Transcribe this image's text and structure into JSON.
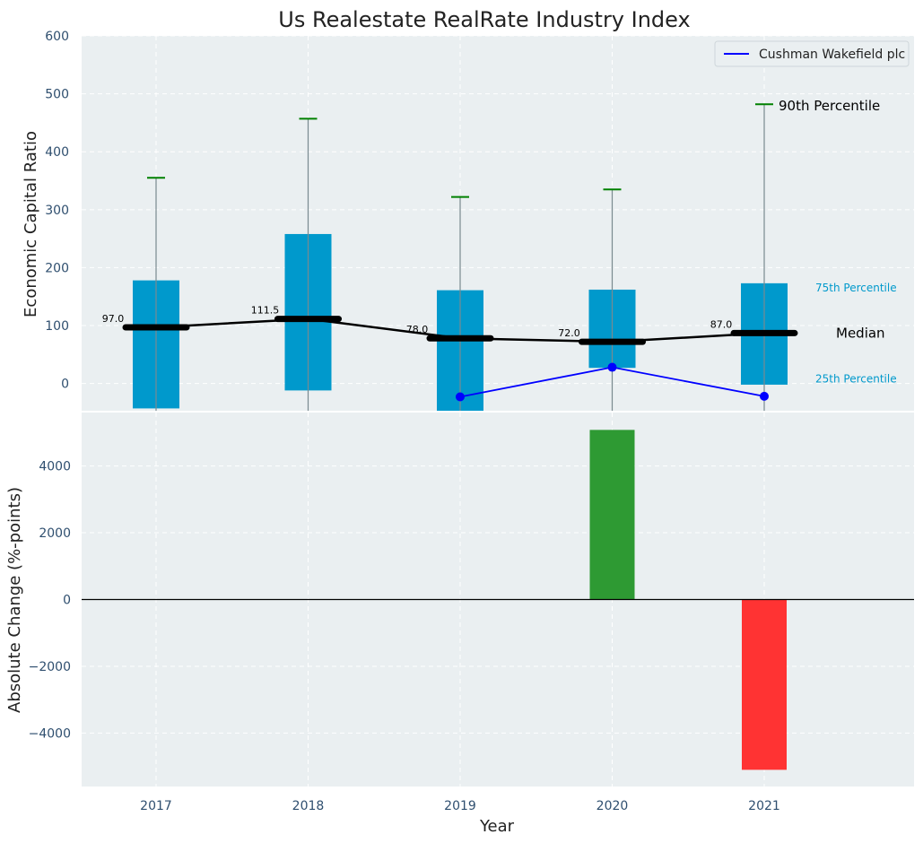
{
  "chart_data": [
    {
      "type": "box",
      "title": "Us Realestate RealRate Industry Index",
      "xlabel": "",
      "ylabel": "Economic Capital Ratio",
      "ylim": [
        -47,
        600
      ],
      "yticks": [
        0,
        100,
        200,
        300,
        400,
        500,
        600
      ],
      "categories": [
        "2017",
        "2018",
        "2019",
        "2020",
        "2021"
      ],
      "p25": [
        -43,
        -12,
        -47,
        27,
        -2
      ],
      "p75": [
        178,
        258,
        161,
        162,
        173
      ],
      "p90": [
        355,
        457,
        322,
        335,
        482
      ],
      "median": [
        97.0,
        111.5,
        78.0,
        72.0,
        87.0
      ],
      "median_labels": [
        "97.0",
        "111.5",
        "78.0",
        "72.0",
        "87.0"
      ],
      "series": [
        {
          "name": "Cushman Wakefield plc",
          "x": [
            "2019",
            "2020",
            "2021"
          ],
          "values": [
            -23,
            28,
            -22
          ]
        }
      ],
      "annotations": {
        "p90": "90th Percentile",
        "p75": "75th Percentile",
        "median": "Median",
        "p25": "25th Percentile"
      },
      "legend": "top-right",
      "grid": true
    },
    {
      "type": "bar",
      "xlabel": "Year",
      "ylabel": "Absolute Change (%-points)",
      "ylim": [
        -5600,
        5600
      ],
      "yticks": [
        -4000,
        -2000,
        0,
        2000,
        4000
      ],
      "ytick_labels": [
        "−4000",
        "−2000",
        "0",
        "2000",
        "4000"
      ],
      "categories": [
        "2017",
        "2018",
        "2019",
        "2020",
        "2021"
      ],
      "values": [
        0,
        0,
        0,
        5080,
        -5100
      ],
      "grid": true
    }
  ],
  "colors": {
    "background": "#eaeff1",
    "box": "#0099cc",
    "median": "#000000",
    "whisker_cap": "#008000",
    "series_line": "#0000ff",
    "positive_bar": "#2e9a33",
    "negative_bar": "#ff3333",
    "axis_text": "#2f4f6f",
    "percentile_label": "#0099cc"
  }
}
